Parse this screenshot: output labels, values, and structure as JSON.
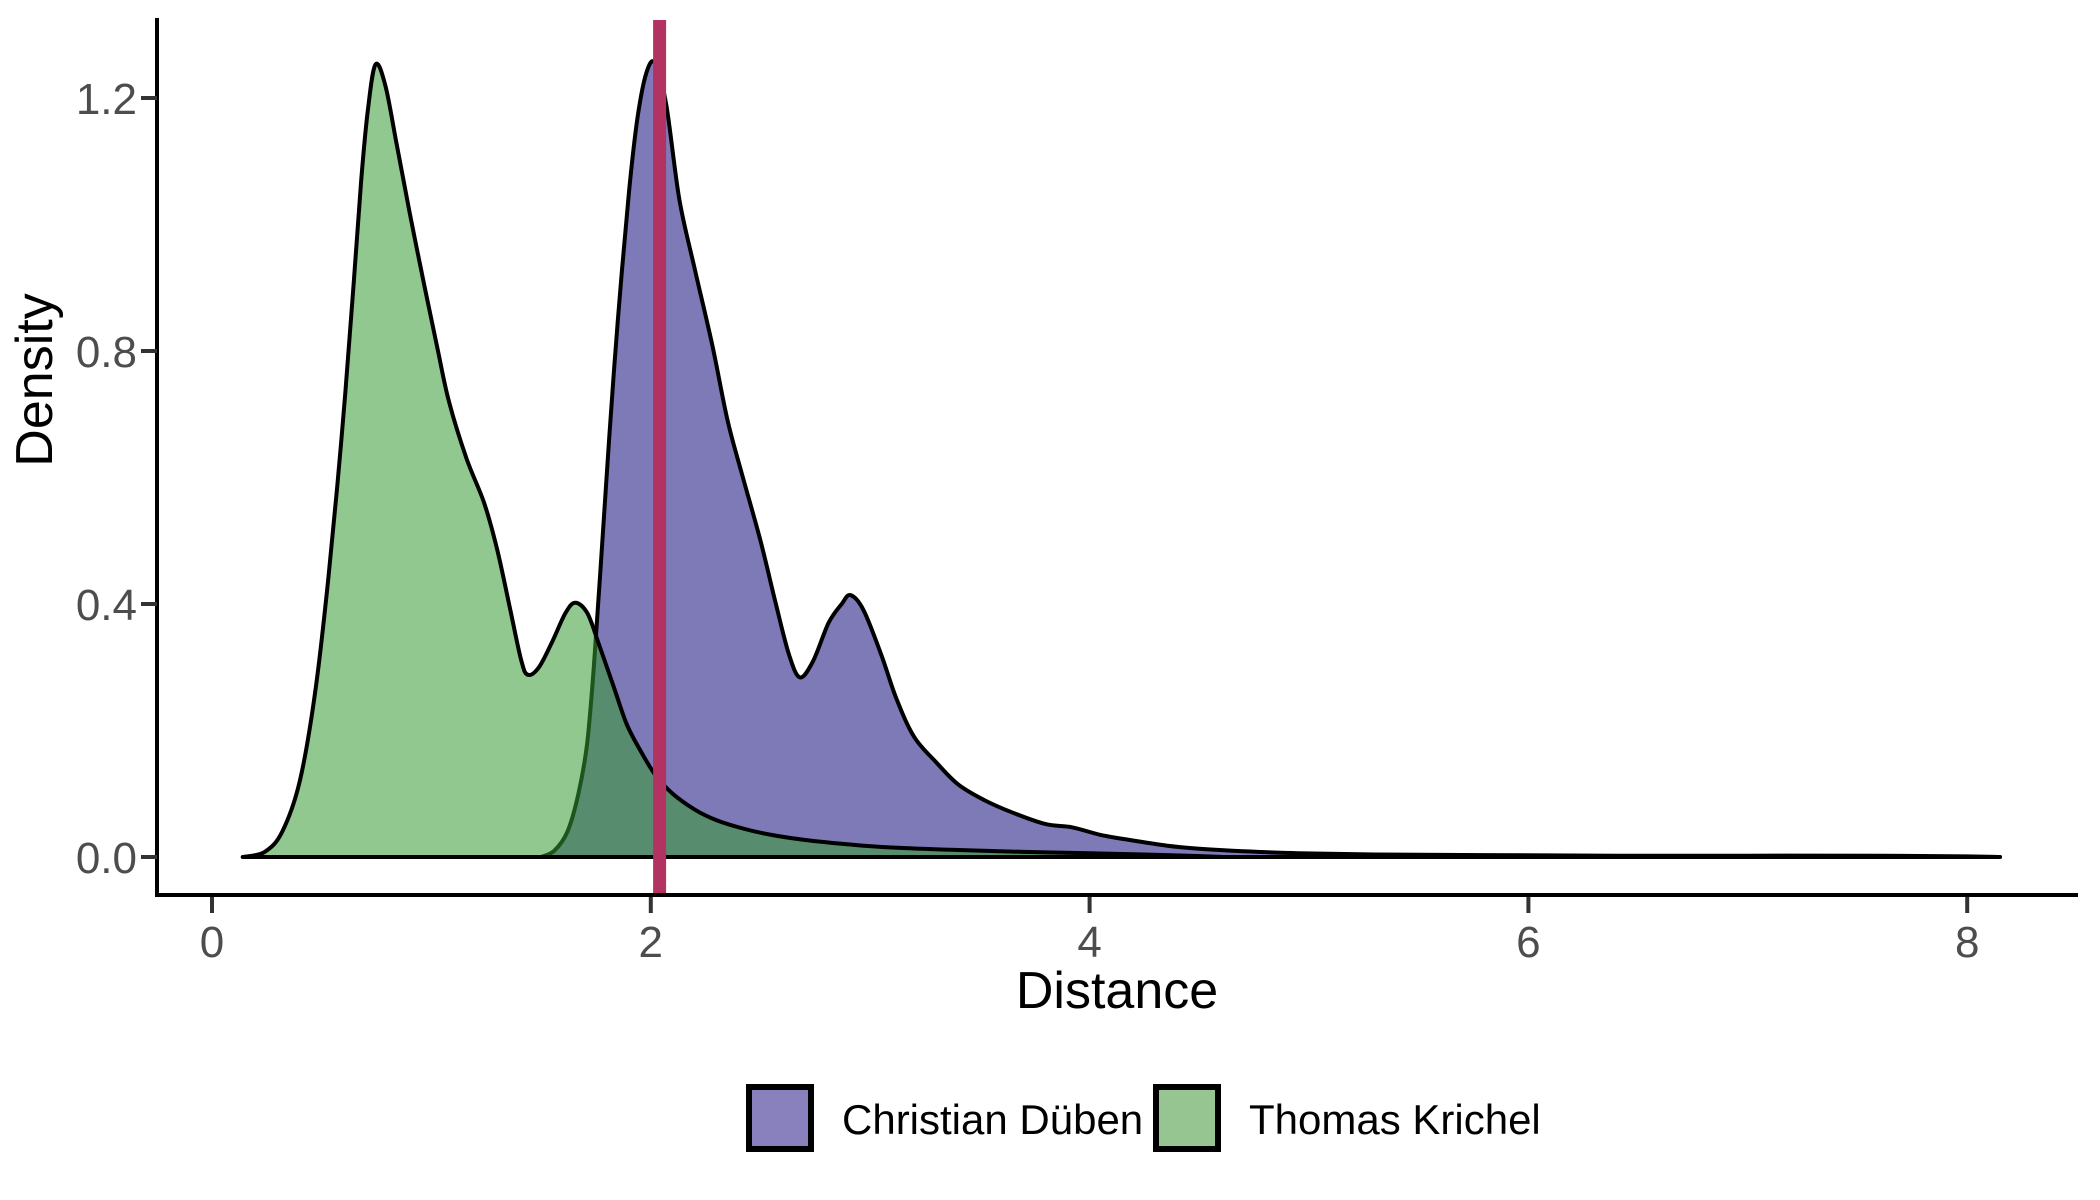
{
  "chart_data": {
    "type": "area",
    "subtype": "kernel-density",
    "title": "",
    "xlabel": "Distance",
    "ylabel": "Density",
    "xlim": [
      -0.25,
      8.5
    ],
    "ylim": [
      0,
      1.32
    ],
    "grid": false,
    "legend_position": "bottom",
    "x_ticks": [
      0,
      2,
      4,
      6,
      8
    ],
    "x_tick_labels": [
      "0",
      "2",
      "4",
      "6",
      "8"
    ],
    "y_ticks": [
      0.0,
      0.4,
      0.8,
      1.2
    ],
    "y_tick_labels": [
      "0.0",
      "0.4",
      "0.8",
      "1.2"
    ],
    "axis_color": "#000000",
    "tick_label_color": "#4d4d4d",
    "curve_outline_color": "#000000",
    "vline": {
      "x": 2.04,
      "color": "#B23361"
    },
    "series": [
      {
        "name": "Christian Düben",
        "fill": "#7E7AB8",
        "legend_fill": "#8881BD",
        "points": [
          [
            1.5,
            0.0
          ],
          [
            1.56,
            0.01
          ],
          [
            1.62,
            0.04
          ],
          [
            1.67,
            0.1
          ],
          [
            1.71,
            0.18
          ],
          [
            1.74,
            0.3
          ],
          [
            1.77,
            0.45
          ],
          [
            1.81,
            0.66
          ],
          [
            1.85,
            0.85
          ],
          [
            1.9,
            1.05
          ],
          [
            1.94,
            1.17
          ],
          [
            1.98,
            1.24
          ],
          [
            2.02,
            1.255
          ],
          [
            2.07,
            1.19
          ],
          [
            2.13,
            1.04
          ],
          [
            2.2,
            0.93
          ],
          [
            2.28,
            0.81
          ],
          [
            2.35,
            0.69
          ],
          [
            2.42,
            0.6
          ],
          [
            2.5,
            0.5
          ],
          [
            2.57,
            0.4
          ],
          [
            2.63,
            0.32
          ],
          [
            2.68,
            0.284
          ],
          [
            2.74,
            0.31
          ],
          [
            2.81,
            0.37
          ],
          [
            2.87,
            0.4
          ],
          [
            2.91,
            0.414
          ],
          [
            2.97,
            0.39
          ],
          [
            3.05,
            0.32
          ],
          [
            3.12,
            0.25
          ],
          [
            3.2,
            0.19
          ],
          [
            3.3,
            0.15
          ],
          [
            3.4,
            0.115
          ],
          [
            3.52,
            0.09
          ],
          [
            3.65,
            0.07
          ],
          [
            3.8,
            0.052
          ],
          [
            3.92,
            0.047
          ],
          [
            4.05,
            0.035
          ],
          [
            4.2,
            0.026
          ],
          [
            4.35,
            0.018
          ],
          [
            4.5,
            0.013
          ],
          [
            4.7,
            0.009
          ],
          [
            4.95,
            0.006
          ],
          [
            5.3,
            0.004
          ],
          [
            5.8,
            0.003
          ],
          [
            6.4,
            0.002
          ],
          [
            7.0,
            0.002
          ],
          [
            7.6,
            0.002
          ],
          [
            8.0,
            0.001
          ],
          [
            8.15,
            0.0
          ]
        ]
      },
      {
        "name": "Thomas Krichel",
        "fill": "rgba(54,154,51,0.55)",
        "legend_fill": "#97C592",
        "points": [
          [
            0.14,
            0.0
          ],
          [
            0.24,
            0.008
          ],
          [
            0.32,
            0.04
          ],
          [
            0.4,
            0.12
          ],
          [
            0.47,
            0.26
          ],
          [
            0.53,
            0.44
          ],
          [
            0.59,
            0.66
          ],
          [
            0.64,
            0.88
          ],
          [
            0.68,
            1.07
          ],
          [
            0.71,
            1.18
          ],
          [
            0.745,
            1.253
          ],
          [
            0.79,
            1.22
          ],
          [
            0.84,
            1.13
          ],
          [
            0.9,
            1.02
          ],
          [
            0.97,
            0.9
          ],
          [
            1.03,
            0.8
          ],
          [
            1.08,
            0.72
          ],
          [
            1.16,
            0.63
          ],
          [
            1.24,
            0.56
          ],
          [
            1.3,
            0.486
          ],
          [
            1.36,
            0.39
          ],
          [
            1.41,
            0.31
          ],
          [
            1.44,
            0.288
          ],
          [
            1.49,
            0.3
          ],
          [
            1.55,
            0.34
          ],
          [
            1.61,
            0.385
          ],
          [
            1.655,
            0.402
          ],
          [
            1.71,
            0.386
          ],
          [
            1.76,
            0.34
          ],
          [
            1.83,
            0.27
          ],
          [
            1.89,
            0.21
          ],
          [
            1.95,
            0.17
          ],
          [
            2.02,
            0.13
          ],
          [
            2.1,
            0.1
          ],
          [
            2.2,
            0.075
          ],
          [
            2.3,
            0.058
          ],
          [
            2.42,
            0.045
          ],
          [
            2.55,
            0.035
          ],
          [
            2.7,
            0.027
          ],
          [
            2.9,
            0.02
          ],
          [
            3.1,
            0.015
          ],
          [
            3.4,
            0.011
          ],
          [
            3.7,
            0.008
          ],
          [
            4.0,
            0.006
          ],
          [
            4.25,
            0.004
          ],
          [
            4.45,
            0.002
          ],
          [
            4.61,
            0.0
          ]
        ]
      }
    ]
  }
}
